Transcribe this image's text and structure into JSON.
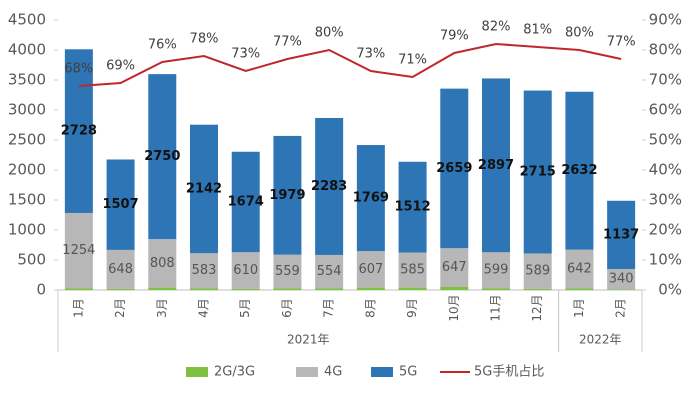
{
  "chart_data": {
    "type": "bar",
    "categories": [
      "1月",
      "2月",
      "3月",
      "4月",
      "5月",
      "6月",
      "7月",
      "8月",
      "9月",
      "10月",
      "11月",
      "12月",
      "1月",
      "2月"
    ],
    "category_groups": [
      {
        "label": "2021年",
        "size": 12
      },
      {
        "label": "2022年",
        "size": 2
      }
    ],
    "stacked": true,
    "series": [
      {
        "name": "2G/3G",
        "color": "#7dc142",
        "values": [
          30,
          20,
          40,
          30,
          20,
          30,
          30,
          40,
          40,
          50,
          30,
          20,
          30,
          10
        ]
      },
      {
        "name": "4G",
        "color": "#b7b7b7",
        "values": [
          1254,
          648,
          808,
          583,
          610,
          559,
          554,
          607,
          585,
          647,
          599,
          589,
          642,
          340
        ]
      },
      {
        "name": "5G",
        "color": "#2e75b6",
        "values": [
          2728,
          1507,
          2750,
          2142,
          1674,
          1979,
          2283,
          1769,
          1512,
          2659,
          2897,
          2715,
          2632,
          1137
        ]
      },
      {
        "name": "5G手机占比",
        "type": "line",
        "axis": "y2",
        "color": "#c0272d",
        "values": [
          68,
          69,
          76,
          78,
          73,
          77,
          80,
          73,
          71,
          79,
          82,
          81,
          80,
          77
        ],
        "value_labels": [
          "68%",
          "69%",
          "76%",
          "78%",
          "73%",
          "77%",
          "80%",
          "73%",
          "71%",
          "79%",
          "82%",
          "81%",
          "80%",
          "77%"
        ]
      }
    ],
    "ylim": [
      0,
      4500
    ],
    "yticks": [
      0,
      500,
      1000,
      1500,
      2000,
      2500,
      3000,
      3500,
      4000,
      4500
    ],
    "y2lim": [
      0,
      90
    ],
    "y2ticks": [
      {
        "value": 0,
        "label": "0%"
      },
      {
        "value": 10,
        "label": "10%"
      },
      {
        "value": 20,
        "label": "20%"
      },
      {
        "value": 30,
        "label": "30%"
      },
      {
        "value": 40,
        "label": "40%"
      },
      {
        "value": 50,
        "label": "50%"
      },
      {
        "value": 60,
        "label": "60%"
      },
      {
        "value": 70,
        "label": "70%"
      },
      {
        "value": 80,
        "label": "80%"
      },
      {
        "value": 90,
        "label": "90%"
      }
    ],
    "legend": "bottom"
  }
}
